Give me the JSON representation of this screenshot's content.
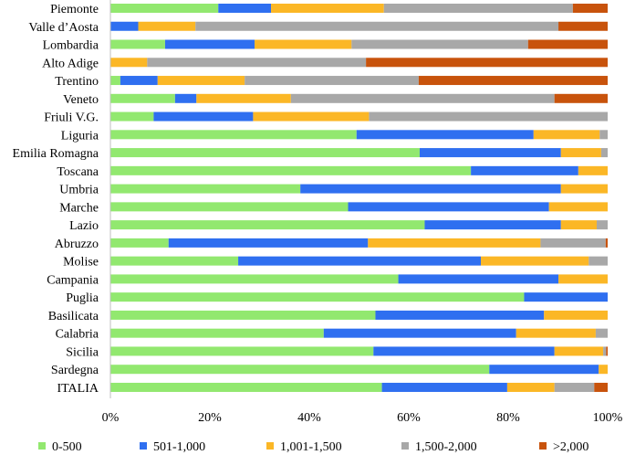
{
  "chart_data": {
    "type": "bar",
    "orientation": "horizontal",
    "stacked": "percent",
    "title": "",
    "xlabel": "",
    "ylabel": "",
    "xlim": [
      0,
      100
    ],
    "x_ticks": [
      "0%",
      "20%",
      "40%",
      "60%",
      "80%",
      "100%"
    ],
    "x_tick_values": [
      0,
      20,
      40,
      60,
      80,
      100
    ],
    "grid": false,
    "legend_position": "bottom",
    "categories": [
      "Piemonte",
      "Valle d’Aosta",
      "Lombardia",
      "Alto Adige",
      "Trentino",
      "Veneto",
      "Friuli V.G.",
      "Liguria",
      "Emilia Romagna",
      "Toscana",
      "Umbria",
      "Marche",
      "Lazio",
      "Abruzzo",
      "Molise",
      "Campania",
      "Puglia",
      "Basilicata",
      "Calabria",
      "Sicilia",
      "Sardegna",
      "ITALIA"
    ],
    "series": [
      {
        "name": "0-500",
        "color": "#92e86f",
        "values": [
          21.7,
          0,
          11.0,
          0,
          2.0,
          13.0,
          8.7,
          49.5,
          62.2,
          72.5,
          38.2,
          47.8,
          63.2,
          11.7,
          25.7,
          57.9,
          83.2,
          53.3,
          42.9,
          52.9,
          76.2,
          54.6
        ]
      },
      {
        "name": "501-1,000",
        "color": "#2f6ff0",
        "values": [
          10.6,
          5.6,
          18.0,
          0,
          7.5,
          4.3,
          20.0,
          35.6,
          28.4,
          21.6,
          52.4,
          40.4,
          27.4,
          40.1,
          48.8,
          32.2,
          16.8,
          33.9,
          38.7,
          36.4,
          22.0,
          25.2
        ]
      },
      {
        "name": "1,001-1,500",
        "color": "#fbb726",
        "values": [
          22.7,
          11.5,
          19.5,
          7.4,
          17.5,
          19.0,
          23.3,
          13.3,
          8.1,
          5.9,
          9.4,
          11.8,
          7.2,
          34.7,
          21.7,
          9.9,
          0,
          12.8,
          16.0,
          9.8,
          1.8,
          9.5
        ]
      },
      {
        "name": "1,500-2,000",
        "color": "#a8a8a8",
        "values": [
          38.0,
          73.0,
          35.5,
          44.0,
          35.0,
          53.0,
          48.0,
          1.6,
          1.3,
          0,
          0,
          0,
          2.2,
          13.1,
          3.8,
          0,
          0,
          0,
          2.4,
          0.6,
          0,
          8.0
        ]
      },
      {
        "name": ">2,000",
        "color": "#c8530c",
        "values": [
          7.0,
          9.9,
          16.0,
          48.6,
          38.0,
          10.7,
          0,
          0,
          0,
          0,
          0,
          0,
          0,
          0.4,
          0,
          0,
          0,
          0,
          0,
          0.3,
          0,
          2.7
        ]
      }
    ]
  }
}
